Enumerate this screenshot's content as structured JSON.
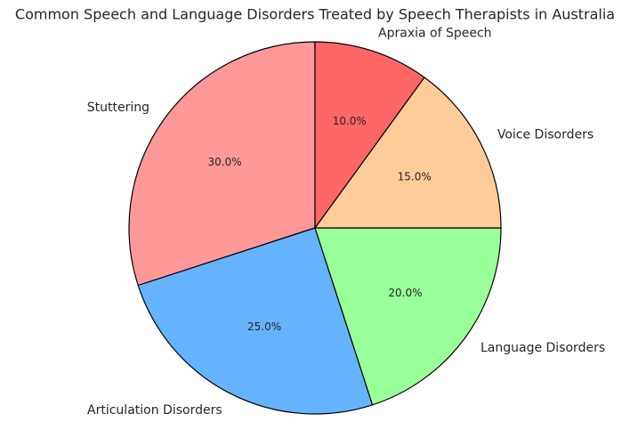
{
  "chart_data": {
    "type": "pie",
    "title": "Common Speech and Language Disorders Treated by Speech Therapists in Australia",
    "categories": [
      "Stuttering",
      "Articulation Disorders",
      "Language Disorders",
      "Voice Disorders",
      "Apraxia of Speech"
    ],
    "values": [
      30,
      25,
      20,
      15,
      10
    ],
    "value_labels": [
      "30.0%",
      "25.0%",
      "20.0%",
      "15.0%",
      "10.0%"
    ],
    "colors": [
      "#ff9999",
      "#66b3ff",
      "#99ff99",
      "#ffcc99",
      "#ff6666"
    ]
  }
}
